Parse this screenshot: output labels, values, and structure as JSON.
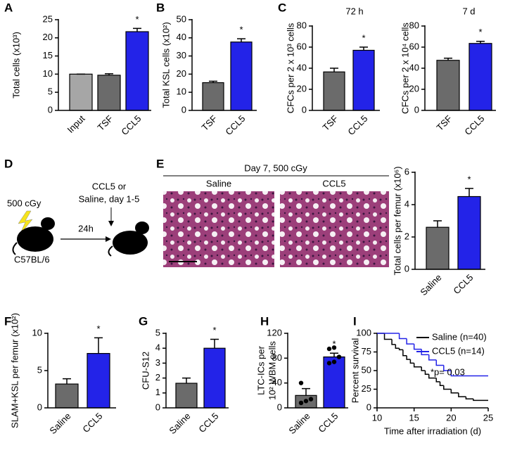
{
  "panel_labels": [
    "A",
    "B",
    "C",
    "D",
    "E",
    "F",
    "G",
    "H",
    "I"
  ],
  "diagram": {
    "dose": "500 cGy",
    "treatment": [
      "CCL5 or",
      "Saline, day 1-5"
    ],
    "interval": "24h",
    "strain": "C57BL/6"
  },
  "histology": {
    "title": "Day 7, 500 cGy",
    "labels": [
      "Saline",
      "CCL5"
    ]
  },
  "chart_data": [
    {
      "type": "bar",
      "y_label": "Total cells (x10³)",
      "categories": [
        "Input",
        "TSF",
        "CCL5"
      ],
      "values": [
        10,
        9.7,
        21.7
      ],
      "errors": [
        0,
        0.4,
        0.9
      ],
      "colors": [
        "#a6a6a6",
        "#6b6b6b",
        "#2323e8"
      ],
      "annotation": "*",
      "ylim": [
        0,
        25
      ],
      "yticks": [
        0,
        5,
        10,
        15,
        20,
        25
      ]
    },
    {
      "type": "bar",
      "y_label": "Total KSL cells (x10²)",
      "categories": [
        "TSF",
        "CCL5"
      ],
      "values": [
        15.3,
        37.7
      ],
      "errors": [
        0.8,
        1.8
      ],
      "colors": [
        "#6b6b6b",
        "#2323e8"
      ],
      "annotation": "*",
      "ylim": [
        0,
        50
      ],
      "yticks": [
        0,
        10,
        20,
        30,
        40,
        50
      ]
    },
    {
      "type": "bar",
      "title": "72 h",
      "y_label": "CFCs per 2 x 10³ cells",
      "categories": [
        "TSF",
        "CCL5"
      ],
      "values": [
        36.5,
        57
      ],
      "errors": [
        3.5,
        3
      ],
      "colors": [
        "#6b6b6b",
        "#2323e8"
      ],
      "annotation": "*",
      "ylim": [
        0,
        80
      ],
      "yticks": [
        0,
        20,
        40,
        60,
        80
      ]
    },
    {
      "type": "bar",
      "title": "7 d",
      "y_label": "CFCs per 2 x 10⁴ cells",
      "categories": [
        "TSF",
        "CCL5"
      ],
      "values": [
        47.5,
        63.5
      ],
      "errors": [
        2,
        2
      ],
      "colors": [
        "#6b6b6b",
        "#2323e8"
      ],
      "annotation": "*",
      "ylim": [
        0,
        80
      ],
      "yticks": [
        0,
        20,
        40,
        60,
        80
      ]
    },
    {
      "type": "bar",
      "y_label": "Total cells per femur (x10⁶)",
      "categories": [
        "Saline",
        "CCL5"
      ],
      "values": [
        2.6,
        4.5
      ],
      "errors": [
        0.4,
        0.5
      ],
      "colors": [
        "#6b6b6b",
        "#2323e8"
      ],
      "annotation": "*",
      "ylim": [
        0,
        6
      ],
      "yticks": [
        0,
        2,
        4,
        6
      ]
    },
    {
      "type": "bar",
      "y_label": "SLAM+KSL per femur (x10²)",
      "categories": [
        "Saline",
        "CCL5"
      ],
      "values": [
        3.2,
        7.3
      ],
      "errors": [
        0.7,
        2.1
      ],
      "colors": [
        "#6b6b6b",
        "#2323e8"
      ],
      "annotation": "*",
      "ylim": [
        0,
        10
      ],
      "yticks": [
        0,
        5,
        10
      ]
    },
    {
      "type": "bar",
      "y_label": "CFU-S12",
      "categories": [
        "Saline",
        "CCL5"
      ],
      "values": [
        1.65,
        4.0
      ],
      "errors": [
        0.35,
        0.6
      ],
      "colors": [
        "#6b6b6b",
        "#2323e8"
      ],
      "annotation": "*",
      "ylim": [
        0,
        5
      ],
      "yticks": [
        0,
        1,
        2,
        3,
        4,
        5
      ]
    },
    {
      "type": "bar",
      "y_label": [
        "LTC-ICs per",
        "10² WBM cells"
      ],
      "categories": [
        "Saline",
        "CCL5"
      ],
      "values": [
        20,
        82
      ],
      "errors": [
        11,
        6
      ],
      "points": [
        [
          8,
          11,
          14,
          40
        ],
        [
          72,
          74,
          82,
          95,
          97
        ]
      ],
      "colors": [
        "#6b6b6b",
        "#2323e8"
      ],
      "annotation": "*",
      "ylim": [
        0,
        120
      ],
      "yticks": [
        0,
        40,
        80,
        120
      ]
    },
    {
      "type": "step",
      "x_label": "Time after irradiation (d)",
      "y_label": "Percent survival",
      "xlim": [
        10,
        25
      ],
      "xticks": [
        10,
        15,
        20,
        25
      ],
      "ylim": [
        0,
        100
      ],
      "yticks": [
        0,
        25,
        50,
        75,
        100
      ],
      "annotation": "*p= 0.03",
      "series": [
        {
          "name": "Saline (n=40)",
          "color": "#000000",
          "x": [
            10,
            11,
            12,
            12.5,
            13,
            13.5,
            14,
            14.5,
            15,
            16,
            16.5,
            17,
            18,
            18.5,
            19,
            20,
            21,
            22,
            23,
            25
          ],
          "values": [
            100,
            92,
            85,
            80,
            78,
            70,
            65,
            60,
            55,
            50,
            45,
            40,
            35,
            30,
            25,
            20,
            15,
            12,
            10,
            10
          ]
        },
        {
          "name": "CCL5 (n=14)",
          "color": "#2323e8",
          "x": [
            10,
            13,
            14,
            15,
            16,
            17,
            18,
            19,
            20,
            25
          ],
          "values": [
            100,
            92.9,
            85.7,
            78.6,
            71.4,
            64.3,
            57.1,
            50,
            42.9,
            42.9
          ]
        }
      ]
    }
  ]
}
